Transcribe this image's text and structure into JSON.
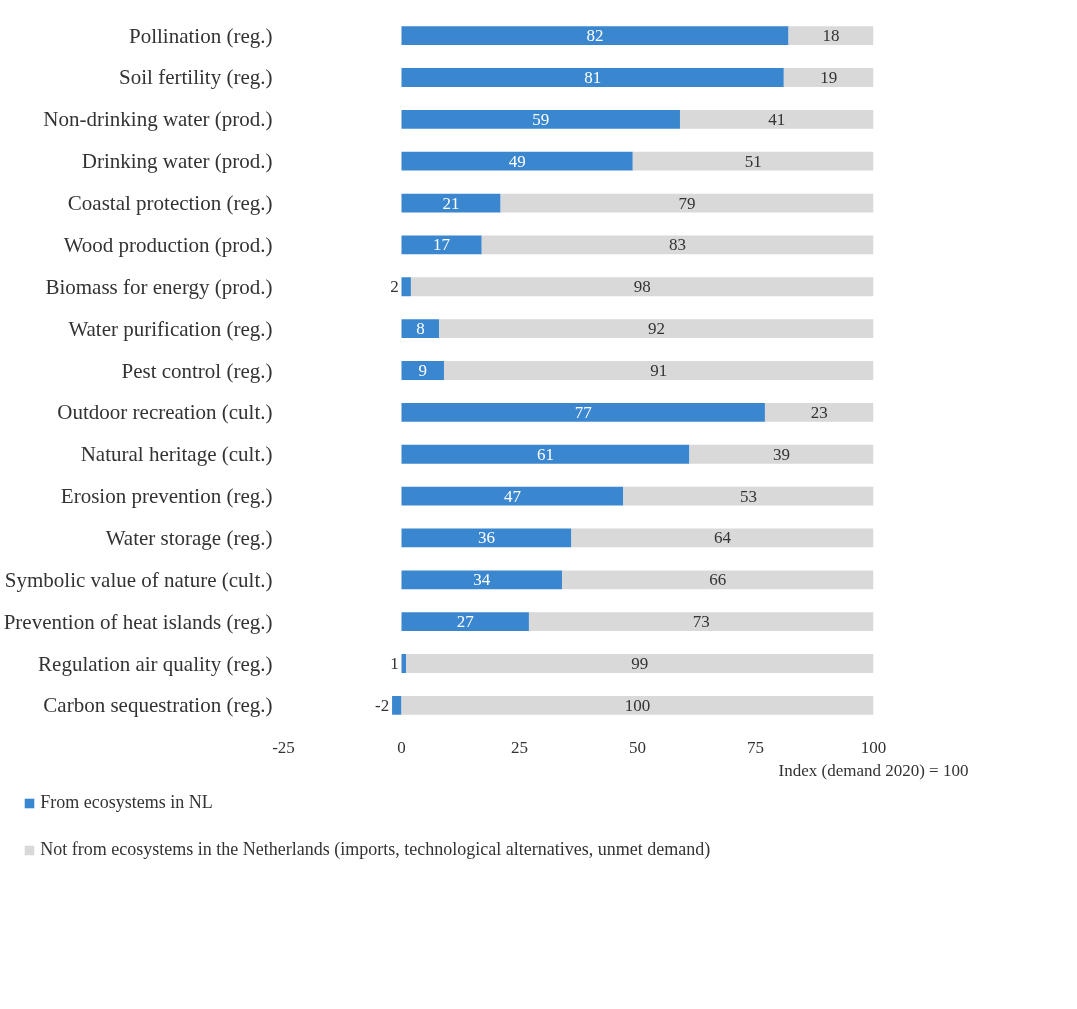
{
  "chart_data": {
    "type": "bar",
    "orientation": "horizontal",
    "stacked": true,
    "categories": [
      "Pollination (reg.)",
      "Soil fertility (reg.)",
      "Non-drinking water (prod.)",
      "Drinking water (prod.)",
      "Coastal protection (reg.)",
      "Wood production (prod.)",
      "Biomass for energy (prod.)",
      "Water purification (reg.)",
      "Pest control (reg.)",
      "Outdoor recreation (cult.)",
      "Natural heritage (cult.)",
      "Erosion prevention (reg.)",
      "Water storage (reg.)",
      "Symbolic value of nature (cult.)",
      "Prevention of heat islands (reg.)",
      "Regulation air quality (reg.)",
      "Carbon sequestration (reg.)"
    ],
    "series": [
      {
        "name": "From ecosystems in NL",
        "color": "#3a87d0",
        "values": [
          82,
          81,
          59,
          49,
          21,
          17,
          2,
          8,
          9,
          77,
          61,
          47,
          36,
          34,
          27,
          1,
          -2
        ]
      },
      {
        "name": "Not from ecosystems in the Netherlands (imports, technological alternatives, unmet demand)",
        "color": "#d9d9d9",
        "values": [
          18,
          19,
          41,
          51,
          79,
          83,
          98,
          92,
          91,
          23,
          39,
          53,
          64,
          66,
          73,
          99,
          100
        ]
      }
    ],
    "data_labels": true,
    "xlabel": "Index (demand 2020) = 100",
    "xlim": [
      -25,
      100
    ],
    "xticks": [
      -25,
      0,
      25,
      50,
      75,
      100
    ],
    "grid": false,
    "legend": "bottom"
  }
}
